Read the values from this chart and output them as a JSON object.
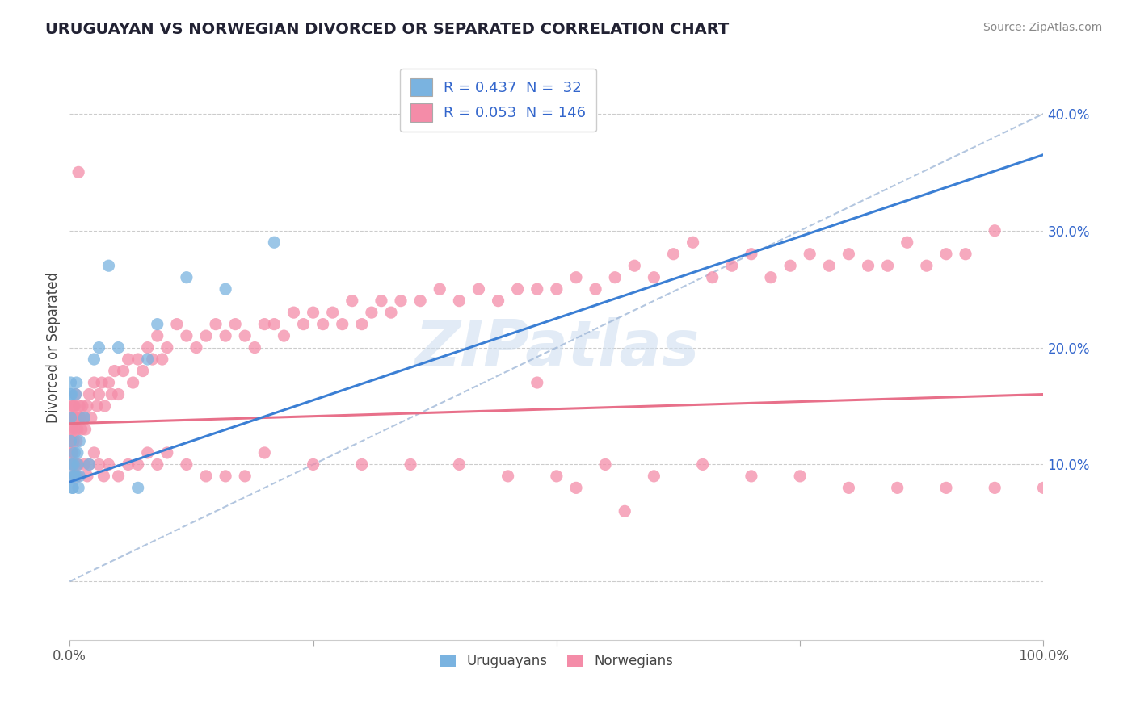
{
  "title": "URUGUAYAN VS NORWEGIAN DIVORCED OR SEPARATED CORRELATION CHART",
  "source": "Source: ZipAtlas.com",
  "ylabel": "Divorced or Separated",
  "xlim": [
    0.0,
    1.0
  ],
  "ylim": [
    -0.05,
    0.45
  ],
  "legend_entries": [
    {
      "label": "R = 0.437  N =  32",
      "color": "#a8c4e0"
    },
    {
      "label": "R = 0.053  N = 146",
      "color": "#f4a7b9"
    }
  ],
  "uruguayan_color": "#7ab3e0",
  "norwegian_color": "#f48ca8",
  "trend_uruguayan_color": "#3b7fd4",
  "trend_norwegian_color": "#e8708a",
  "watermark": "ZIPatlas",
  "uruguayan_R": 0.437,
  "norwegian_R": 0.053,
  "uru_x": [
    0.001,
    0.001,
    0.001,
    0.001,
    0.002,
    0.002,
    0.003,
    0.003,
    0.004,
    0.004,
    0.005,
    0.005,
    0.006,
    0.006,
    0.007,
    0.008,
    0.008,
    0.009,
    0.01,
    0.01,
    0.015,
    0.02,
    0.025,
    0.03,
    0.04,
    0.05,
    0.07,
    0.08,
    0.09,
    0.12,
    0.16,
    0.21
  ],
  "uru_y": [
    0.17,
    0.16,
    0.14,
    0.12,
    0.16,
    0.1,
    0.08,
    0.08,
    0.09,
    0.1,
    0.11,
    0.09,
    0.09,
    0.16,
    0.17,
    0.1,
    0.11,
    0.08,
    0.09,
    0.12,
    0.14,
    0.1,
    0.19,
    0.2,
    0.27,
    0.2,
    0.08,
    0.19,
    0.22,
    0.26,
    0.25,
    0.29
  ],
  "norw_x": [
    0.001,
    0.001,
    0.001,
    0.002,
    0.002,
    0.003,
    0.003,
    0.004,
    0.004,
    0.005,
    0.005,
    0.006,
    0.006,
    0.007,
    0.007,
    0.008,
    0.009,
    0.01,
    0.01,
    0.011,
    0.012,
    0.013,
    0.015,
    0.016,
    0.018,
    0.02,
    0.022,
    0.025,
    0.028,
    0.03,
    0.033,
    0.036,
    0.04,
    0.043,
    0.046,
    0.05,
    0.055,
    0.06,
    0.065,
    0.07,
    0.075,
    0.08,
    0.085,
    0.09,
    0.095,
    0.1,
    0.11,
    0.12,
    0.13,
    0.14,
    0.15,
    0.16,
    0.17,
    0.18,
    0.19,
    0.2,
    0.21,
    0.22,
    0.23,
    0.24,
    0.25,
    0.26,
    0.27,
    0.28,
    0.29,
    0.3,
    0.31,
    0.32,
    0.33,
    0.34,
    0.36,
    0.38,
    0.4,
    0.42,
    0.44,
    0.46,
    0.48,
    0.5,
    0.52,
    0.54,
    0.56,
    0.58,
    0.6,
    0.62,
    0.64,
    0.66,
    0.68,
    0.7,
    0.72,
    0.74,
    0.76,
    0.78,
    0.8,
    0.82,
    0.84,
    0.86,
    0.88,
    0.9,
    0.92,
    0.95,
    0.001,
    0.002,
    0.003,
    0.004,
    0.005,
    0.006,
    0.007,
    0.008,
    0.009,
    0.015,
    0.018,
    0.02,
    0.025,
    0.03,
    0.035,
    0.04,
    0.05,
    0.06,
    0.07,
    0.08,
    0.09,
    0.1,
    0.12,
    0.14,
    0.16,
    0.18,
    0.2,
    0.25,
    0.3,
    0.35,
    0.4,
    0.45,
    0.5,
    0.55,
    0.6,
    0.65,
    0.7,
    0.75,
    0.8,
    0.85,
    0.9,
    0.95,
    1.0,
    0.48,
    0.52,
    0.57
  ],
  "norw_y": [
    0.14,
    0.12,
    0.13,
    0.15,
    0.11,
    0.13,
    0.14,
    0.15,
    0.12,
    0.14,
    0.15,
    0.13,
    0.16,
    0.14,
    0.12,
    0.13,
    0.35,
    0.14,
    0.15,
    0.14,
    0.13,
    0.15,
    0.14,
    0.13,
    0.15,
    0.16,
    0.14,
    0.17,
    0.15,
    0.16,
    0.17,
    0.15,
    0.17,
    0.16,
    0.18,
    0.16,
    0.18,
    0.19,
    0.17,
    0.19,
    0.18,
    0.2,
    0.19,
    0.21,
    0.19,
    0.2,
    0.22,
    0.21,
    0.2,
    0.21,
    0.22,
    0.21,
    0.22,
    0.21,
    0.2,
    0.22,
    0.22,
    0.21,
    0.23,
    0.22,
    0.23,
    0.22,
    0.23,
    0.22,
    0.24,
    0.22,
    0.23,
    0.24,
    0.23,
    0.24,
    0.24,
    0.25,
    0.24,
    0.25,
    0.24,
    0.25,
    0.25,
    0.25,
    0.26,
    0.25,
    0.26,
    0.27,
    0.26,
    0.28,
    0.29,
    0.26,
    0.27,
    0.28,
    0.26,
    0.27,
    0.28,
    0.27,
    0.28,
    0.27,
    0.27,
    0.29,
    0.27,
    0.28,
    0.28,
    0.3,
    0.12,
    0.1,
    0.11,
    0.1,
    0.09,
    0.1,
    0.09,
    0.09,
    0.1,
    0.1,
    0.09,
    0.1,
    0.11,
    0.1,
    0.09,
    0.1,
    0.09,
    0.1,
    0.1,
    0.11,
    0.1,
    0.11,
    0.1,
    0.09,
    0.09,
    0.09,
    0.11,
    0.1,
    0.1,
    0.1,
    0.1,
    0.09,
    0.09,
    0.1,
    0.09,
    0.1,
    0.09,
    0.09,
    0.08,
    0.08,
    0.08,
    0.08,
    0.08,
    0.17,
    0.08,
    0.06
  ]
}
